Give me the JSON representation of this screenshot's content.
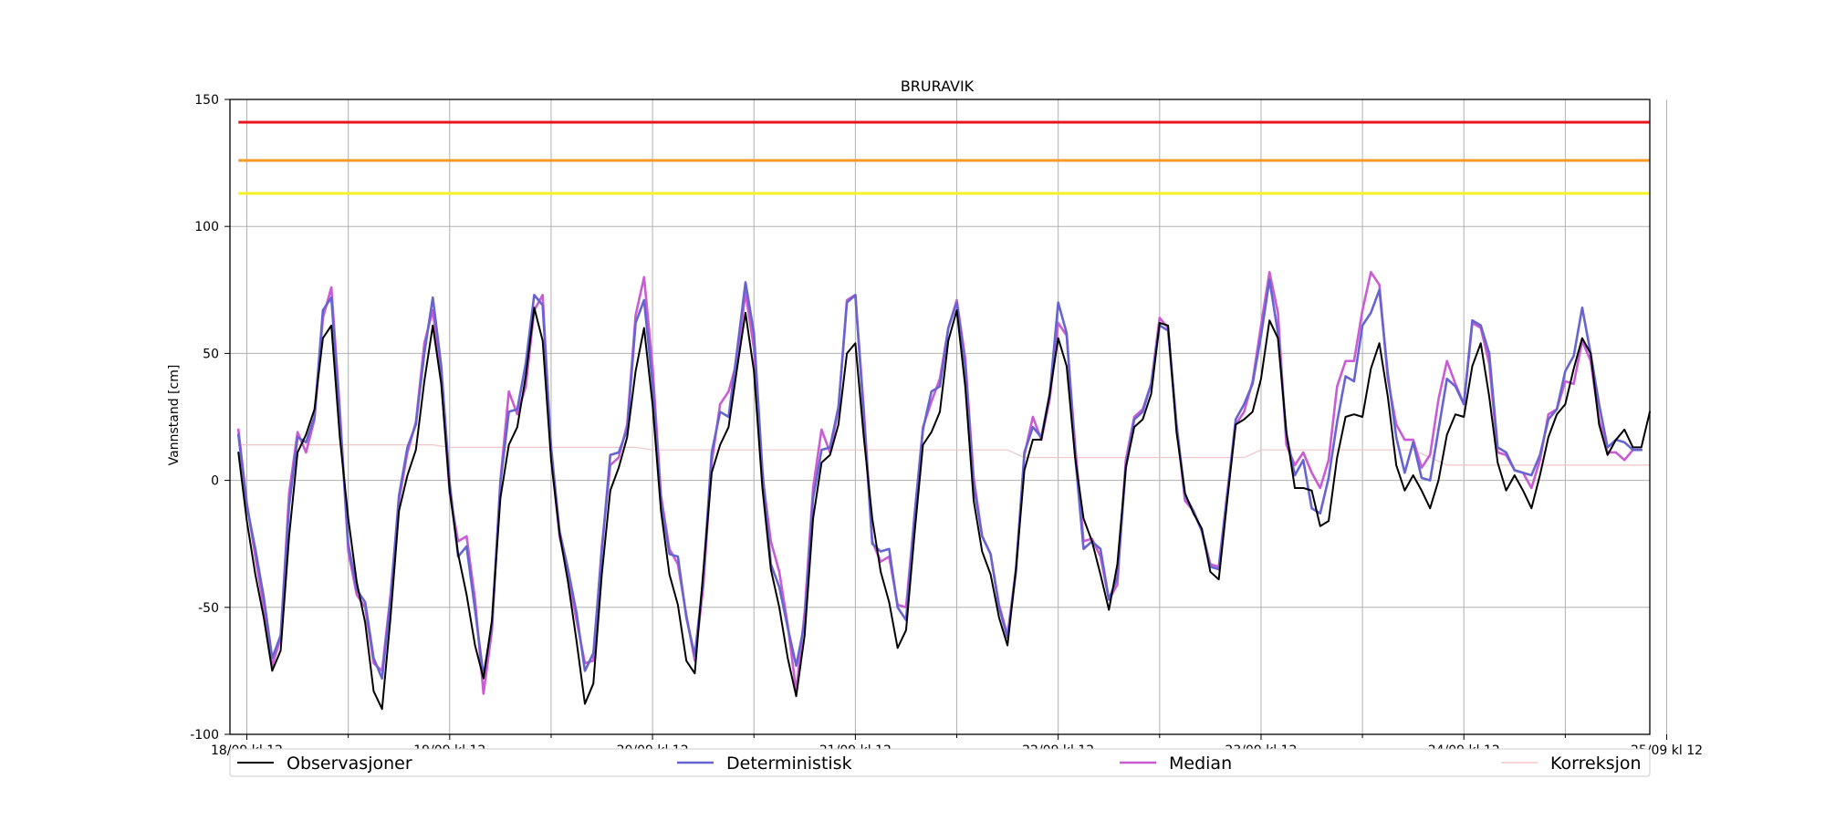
{
  "chart_data": {
    "type": "line",
    "title": "BRURAVIK",
    "ylabel": "Vannstand [cm]",
    "xlabel": "",
    "ylim": [
      -100,
      150
    ],
    "xlim": [
      -2,
      166
    ],
    "x_unit": "hours since 18/09 kl 12, 3-hourly samples",
    "y_ticks": [
      -100,
      -50,
      0,
      50,
      100,
      150
    ],
    "x_ticks": [
      {
        "x": 0,
        "label": "18/09 kl 12"
      },
      {
        "x": 24,
        "label": "19/09 kl 12"
      },
      {
        "x": 48,
        "label": "20/09 kl 12"
      },
      {
        "x": 72,
        "label": "21/09 kl 12"
      },
      {
        "x": 96,
        "label": "22/09 kl 12"
      },
      {
        "x": 120,
        "label": "23/09 kl 12"
      },
      {
        "x": 144,
        "label": "24/09 kl 12"
      },
      {
        "x": 168,
        "label": "25/09 kl 12"
      }
    ],
    "minor_x_ticks": [
      12,
      36,
      60,
      84,
      108,
      132,
      156
    ],
    "grid": true,
    "legend_position": "bottom, below plot, 4 columns",
    "thresholds": [
      {
        "value": 141,
        "color": "#e8141c"
      },
      {
        "value": 126,
        "color": "#f39a27"
      },
      {
        "value": 113,
        "color": "#f3f323"
      }
    ],
    "series": [
      {
        "name": "Observasjoner",
        "color": "#000000",
        "width": 2,
        "x": [
          -1,
          0,
          1,
          2,
          3,
          4,
          5,
          6,
          7,
          8,
          9,
          10,
          11,
          12,
          13,
          14,
          15,
          16,
          17,
          18,
          19,
          20,
          21,
          22,
          23,
          24,
          25,
          26,
          27,
          28,
          29,
          30,
          31,
          32,
          33,
          34,
          35,
          36,
          37,
          38,
          39,
          40,
          41,
          42,
          43,
          44,
          45,
          46,
          47,
          48,
          49,
          50,
          51,
          52,
          53,
          54,
          55,
          56,
          57,
          58,
          59,
          60,
          61,
          62,
          63,
          64,
          65,
          66,
          67,
          68,
          69,
          70,
          71,
          72,
          73,
          74,
          75,
          76,
          77,
          78,
          79,
          80,
          81,
          82,
          83,
          84,
          85,
          86,
          87,
          88,
          89,
          90,
          91,
          92,
          93,
          94,
          95,
          96,
          97,
          98,
          99,
          100,
          101,
          102,
          103,
          104,
          105,
          106,
          107,
          108,
          109,
          110,
          111,
          112,
          113,
          114,
          115,
          116,
          117,
          118,
          119,
          120,
          121,
          122,
          123,
          124,
          125,
          126,
          127,
          128,
          129,
          130,
          131,
          132,
          133,
          134,
          135,
          136,
          137,
          138,
          139,
          140,
          141,
          142,
          143,
          144,
          145,
          146,
          147,
          148,
          149,
          150,
          151,
          152,
          153,
          154,
          155,
          156,
          157,
          158,
          159,
          160,
          161,
          162,
          163,
          164,
          165,
          166
        ],
        "values": [
          11,
          -16,
          -37,
          -54,
          -75,
          -67,
          -22,
          11,
          18,
          28,
          56,
          61,
          17,
          -15,
          -40,
          -56,
          -83,
          -90,
          -54,
          -12,
          2,
          12,
          39,
          61,
          38,
          -4,
          -29,
          -45,
          -65,
          -78,
          -55,
          -7,
          14,
          21,
          41,
          68,
          55,
          8,
          -21,
          -40,
          -63,
          -88,
          -80,
          -37,
          -4,
          5,
          17,
          43,
          60,
          30,
          -12,
          -37,
          -49,
          -71,
          -76,
          -36,
          3,
          14,
          21,
          44,
          66,
          43,
          -3,
          -35,
          -50,
          -70,
          -85,
          -61,
          -15,
          7,
          10,
          22,
          50,
          54,
          17,
          -15,
          -36,
          -48,
          -66,
          -59,
          -21,
          14,
          19,
          27,
          55,
          67,
          37,
          -8,
          -28,
          -37,
          -54,
          -65,
          -35,
          4,
          16,
          16,
          34,
          56,
          45,
          9,
          -15,
          -24,
          -37,
          -51,
          -33,
          5,
          21,
          24,
          34,
          62,
          61,
          19,
          -5,
          -13,
          -19,
          -36,
          -39,
          -8,
          22,
          24,
          27,
          40,
          63,
          56,
          19,
          -3,
          -3,
          -4,
          -18,
          -16,
          9,
          25,
          26,
          25,
          44,
          54,
          33,
          6,
          -4,
          2,
          -4,
          -11,
          0,
          18,
          26,
          25,
          45,
          54,
          33,
          7,
          -4,
          2,
          -4,
          -11,
          2,
          17,
          26,
          30,
          44,
          56,
          50,
          22,
          10,
          16,
          20,
          13,
          13,
          27
        ]
      },
      {
        "name": "Deterministisk",
        "color": "#6664cf",
        "width": 2.6,
        "x": [
          -1,
          0,
          1,
          2,
          3,
          4,
          5,
          6,
          7,
          8,
          9,
          10,
          11,
          12,
          13,
          14,
          15,
          16,
          17,
          18,
          19,
          20,
          21,
          22,
          23,
          24,
          25,
          26,
          27,
          28,
          29,
          30,
          31,
          32,
          33,
          34,
          35,
          36,
          37,
          38,
          39,
          40,
          41,
          42,
          43,
          44,
          45,
          46,
          47,
          48,
          49,
          50,
          51,
          52,
          53,
          54,
          55,
          56,
          57,
          58,
          59,
          60,
          61,
          62,
          63,
          64,
          65,
          66,
          67,
          68,
          69,
          70,
          71,
          72,
          73,
          74,
          75,
          76,
          77,
          78,
          79,
          80,
          81,
          82,
          83,
          84,
          85,
          86,
          87,
          88,
          89,
          90,
          91,
          92,
          93,
          94,
          95,
          96,
          97,
          98,
          99,
          100,
          101,
          102,
          103,
          104,
          105,
          106,
          107,
          108,
          109,
          110,
          111,
          112,
          113,
          114,
          115,
          116,
          117,
          118,
          119,
          120,
          121,
          122,
          123,
          124,
          125,
          126,
          127,
          128,
          129,
          130,
          131,
          132,
          133,
          134,
          135,
          136,
          137,
          138,
          139,
          140,
          141,
          142,
          143,
          144,
          145,
          146,
          147,
          148,
          149,
          150,
          151,
          152,
          153,
          154,
          155,
          156,
          157,
          158,
          159,
          160,
          161,
          162,
          163,
          164,
          165
        ],
        "values": [
          18,
          -10,
          -27,
          -46,
          -70,
          -61,
          -10,
          17,
          15,
          25,
          67,
          72,
          25,
          -25,
          -43,
          -48,
          -70,
          -78,
          -47,
          -6,
          13,
          22,
          50,
          72,
          45,
          -1,
          -30,
          -26,
          -51,
          -77,
          -57,
          -1,
          27,
          28,
          46,
          73,
          69,
          13,
          -20,
          -35,
          -52,
          -75,
          -68,
          -28,
          10,
          11,
          20,
          62,
          71,
          38,
          -8,
          -29,
          -30,
          -54,
          -69,
          -39,
          11,
          27,
          25,
          51,
          78,
          58,
          4,
          -33,
          -42,
          -58,
          -73,
          -56,
          -7,
          12,
          13,
          29,
          70,
          73,
          25,
          -25,
          -28,
          -27,
          -50,
          -55,
          -14,
          20,
          35,
          37,
          60,
          70,
          45,
          -2,
          -22,
          -29,
          -50,
          -62,
          -36,
          11,
          21,
          17,
          34,
          70,
          58,
          10,
          -27,
          -24,
          -27,
          -47,
          -38,
          5,
          24,
          27,
          38,
          61,
          59,
          22,
          -6,
          -12,
          -20,
          -34,
          -35,
          -6,
          24,
          30,
          38,
          57,
          79,
          58,
          18,
          2,
          8,
          -11,
          -13,
          1,
          23,
          41,
          39,
          61,
          66,
          75,
          42,
          17,
          3,
          15,
          1,
          0,
          20,
          40,
          37,
          30,
          63,
          61,
          50,
          13,
          11,
          4,
          3,
          2,
          10,
          24,
          28,
          43,
          49,
          68,
          50,
          30,
          13,
          16,
          15,
          12,
          12
        ]
      },
      {
        "name": "Median",
        "color": "#c95bd4",
        "width": 2.6,
        "x": [
          -1,
          0,
          1,
          2,
          3,
          4,
          5,
          6,
          7,
          8,
          9,
          10,
          11,
          12,
          13,
          14,
          15,
          16,
          17,
          18,
          19,
          20,
          21,
          22,
          23,
          24,
          25,
          26,
          27,
          28,
          29,
          30,
          31,
          32,
          33,
          34,
          35,
          36,
          37,
          38,
          39,
          40,
          41,
          42,
          43,
          44,
          45,
          46,
          47,
          48,
          49,
          50,
          51,
          52,
          53,
          54,
          55,
          56,
          57,
          58,
          59,
          60,
          61,
          62,
          63,
          64,
          65,
          66,
          67,
          68,
          69,
          70,
          71,
          72,
          73,
          74,
          75,
          76,
          77,
          78,
          79,
          80,
          81,
          82,
          83,
          84,
          85,
          86,
          87,
          88,
          89,
          90,
          91,
          92,
          93,
          94,
          95,
          96,
          97,
          98,
          99,
          100,
          101,
          102,
          103,
          104,
          105,
          106,
          107,
          108,
          109,
          110,
          111,
          112,
          113,
          114,
          115,
          116,
          117,
          118,
          119,
          120,
          121,
          122,
          123,
          124,
          125,
          126,
          127,
          128,
          129,
          130,
          131,
          132,
          133,
          134,
          135,
          136,
          137,
          138,
          139,
          140,
          141,
          142,
          143,
          144,
          145,
          146,
          147,
          148,
          149,
          150,
          151,
          152,
          153,
          154,
          155,
          156,
          157,
          158,
          159,
          160,
          161,
          162,
          163,
          164,
          165
        ],
        "values": [
          20,
          -9,
          -30,
          -50,
          -73,
          -62,
          -5,
          19,
          11,
          24,
          64,
          76,
          28,
          -28,
          -45,
          -50,
          -72,
          -75,
          -45,
          -8,
          11,
          23,
          54,
          67,
          40,
          -5,
          -24,
          -22,
          -47,
          -84,
          -59,
          0,
          35,
          26,
          37,
          67,
          73,
          10,
          -22,
          -37,
          -55,
          -72,
          -71,
          -26,
          6,
          9,
          22,
          65,
          80,
          45,
          -6,
          -27,
          -33,
          -53,
          -71,
          -42,
          7,
          30,
          35,
          47,
          74,
          52,
          2,
          -24,
          -36,
          -57,
          -83,
          -52,
          -3,
          20,
          11,
          28,
          71,
          73,
          28,
          -24,
          -32,
          -30,
          -49,
          -50,
          -14,
          21,
          31,
          40,
          60,
          71,
          48,
          1,
          -22,
          -29,
          -49,
          -61,
          -35,
          10,
          25,
          16,
          32,
          62,
          57,
          14,
          -24,
          -23,
          -30,
          -47,
          -41,
          8,
          25,
          28,
          38,
          64,
          60,
          22,
          -8,
          -12,
          -20,
          -33,
          -34,
          -5,
          22,
          27,
          39,
          61,
          82,
          66,
          14,
          6,
          11,
          3,
          -3,
          8,
          37,
          47,
          47,
          67,
          82,
          77,
          40,
          22,
          16,
          16,
          5,
          10,
          32,
          47,
          38,
          30,
          62,
          60,
          46,
          11,
          10,
          4,
          3,
          -3,
          8,
          26,
          28,
          39,
          38,
          55,
          47,
          24,
          11,
          11,
          8,
          12,
          12
        ]
      },
      {
        "name": "Korreksjon",
        "color": "#f0c6c6",
        "width": 1.2,
        "x": [
          -1,
          22,
          24,
          46,
          48,
          90,
          92,
          118,
          120,
          138,
          142,
          166
        ],
        "values": [
          14,
          14,
          13,
          13,
          12,
          12,
          9,
          9,
          12,
          12,
          6,
          6
        ]
      }
    ]
  }
}
